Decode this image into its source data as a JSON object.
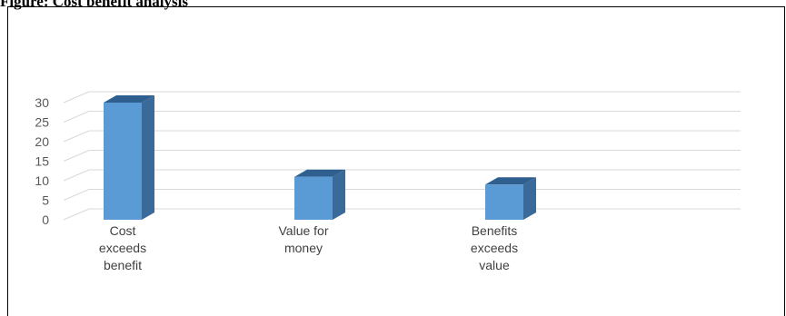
{
  "caption": "Figure: Cost benefit analysis",
  "chart_data": {
    "type": "bar",
    "style": "3d-column",
    "categories": [
      [
        "Cost",
        "exceeds",
        "benefit"
      ],
      [
        "Value for",
        "money"
      ],
      [
        "Benefits",
        "exceeds",
        "value"
      ]
    ],
    "values": [
      30,
      11,
      9
    ],
    "ylim": [
      0,
      30
    ],
    "yticks": [
      "0",
      "5",
      "10",
      "15",
      "20",
      "25",
      "30"
    ],
    "grid": true,
    "legend": "none",
    "colors": {
      "bar_front": "#5b9bd5",
      "bar_side": "#3a6a99",
      "bar_top": "#2f5f8e",
      "grid": "#d9d9d9"
    }
  }
}
